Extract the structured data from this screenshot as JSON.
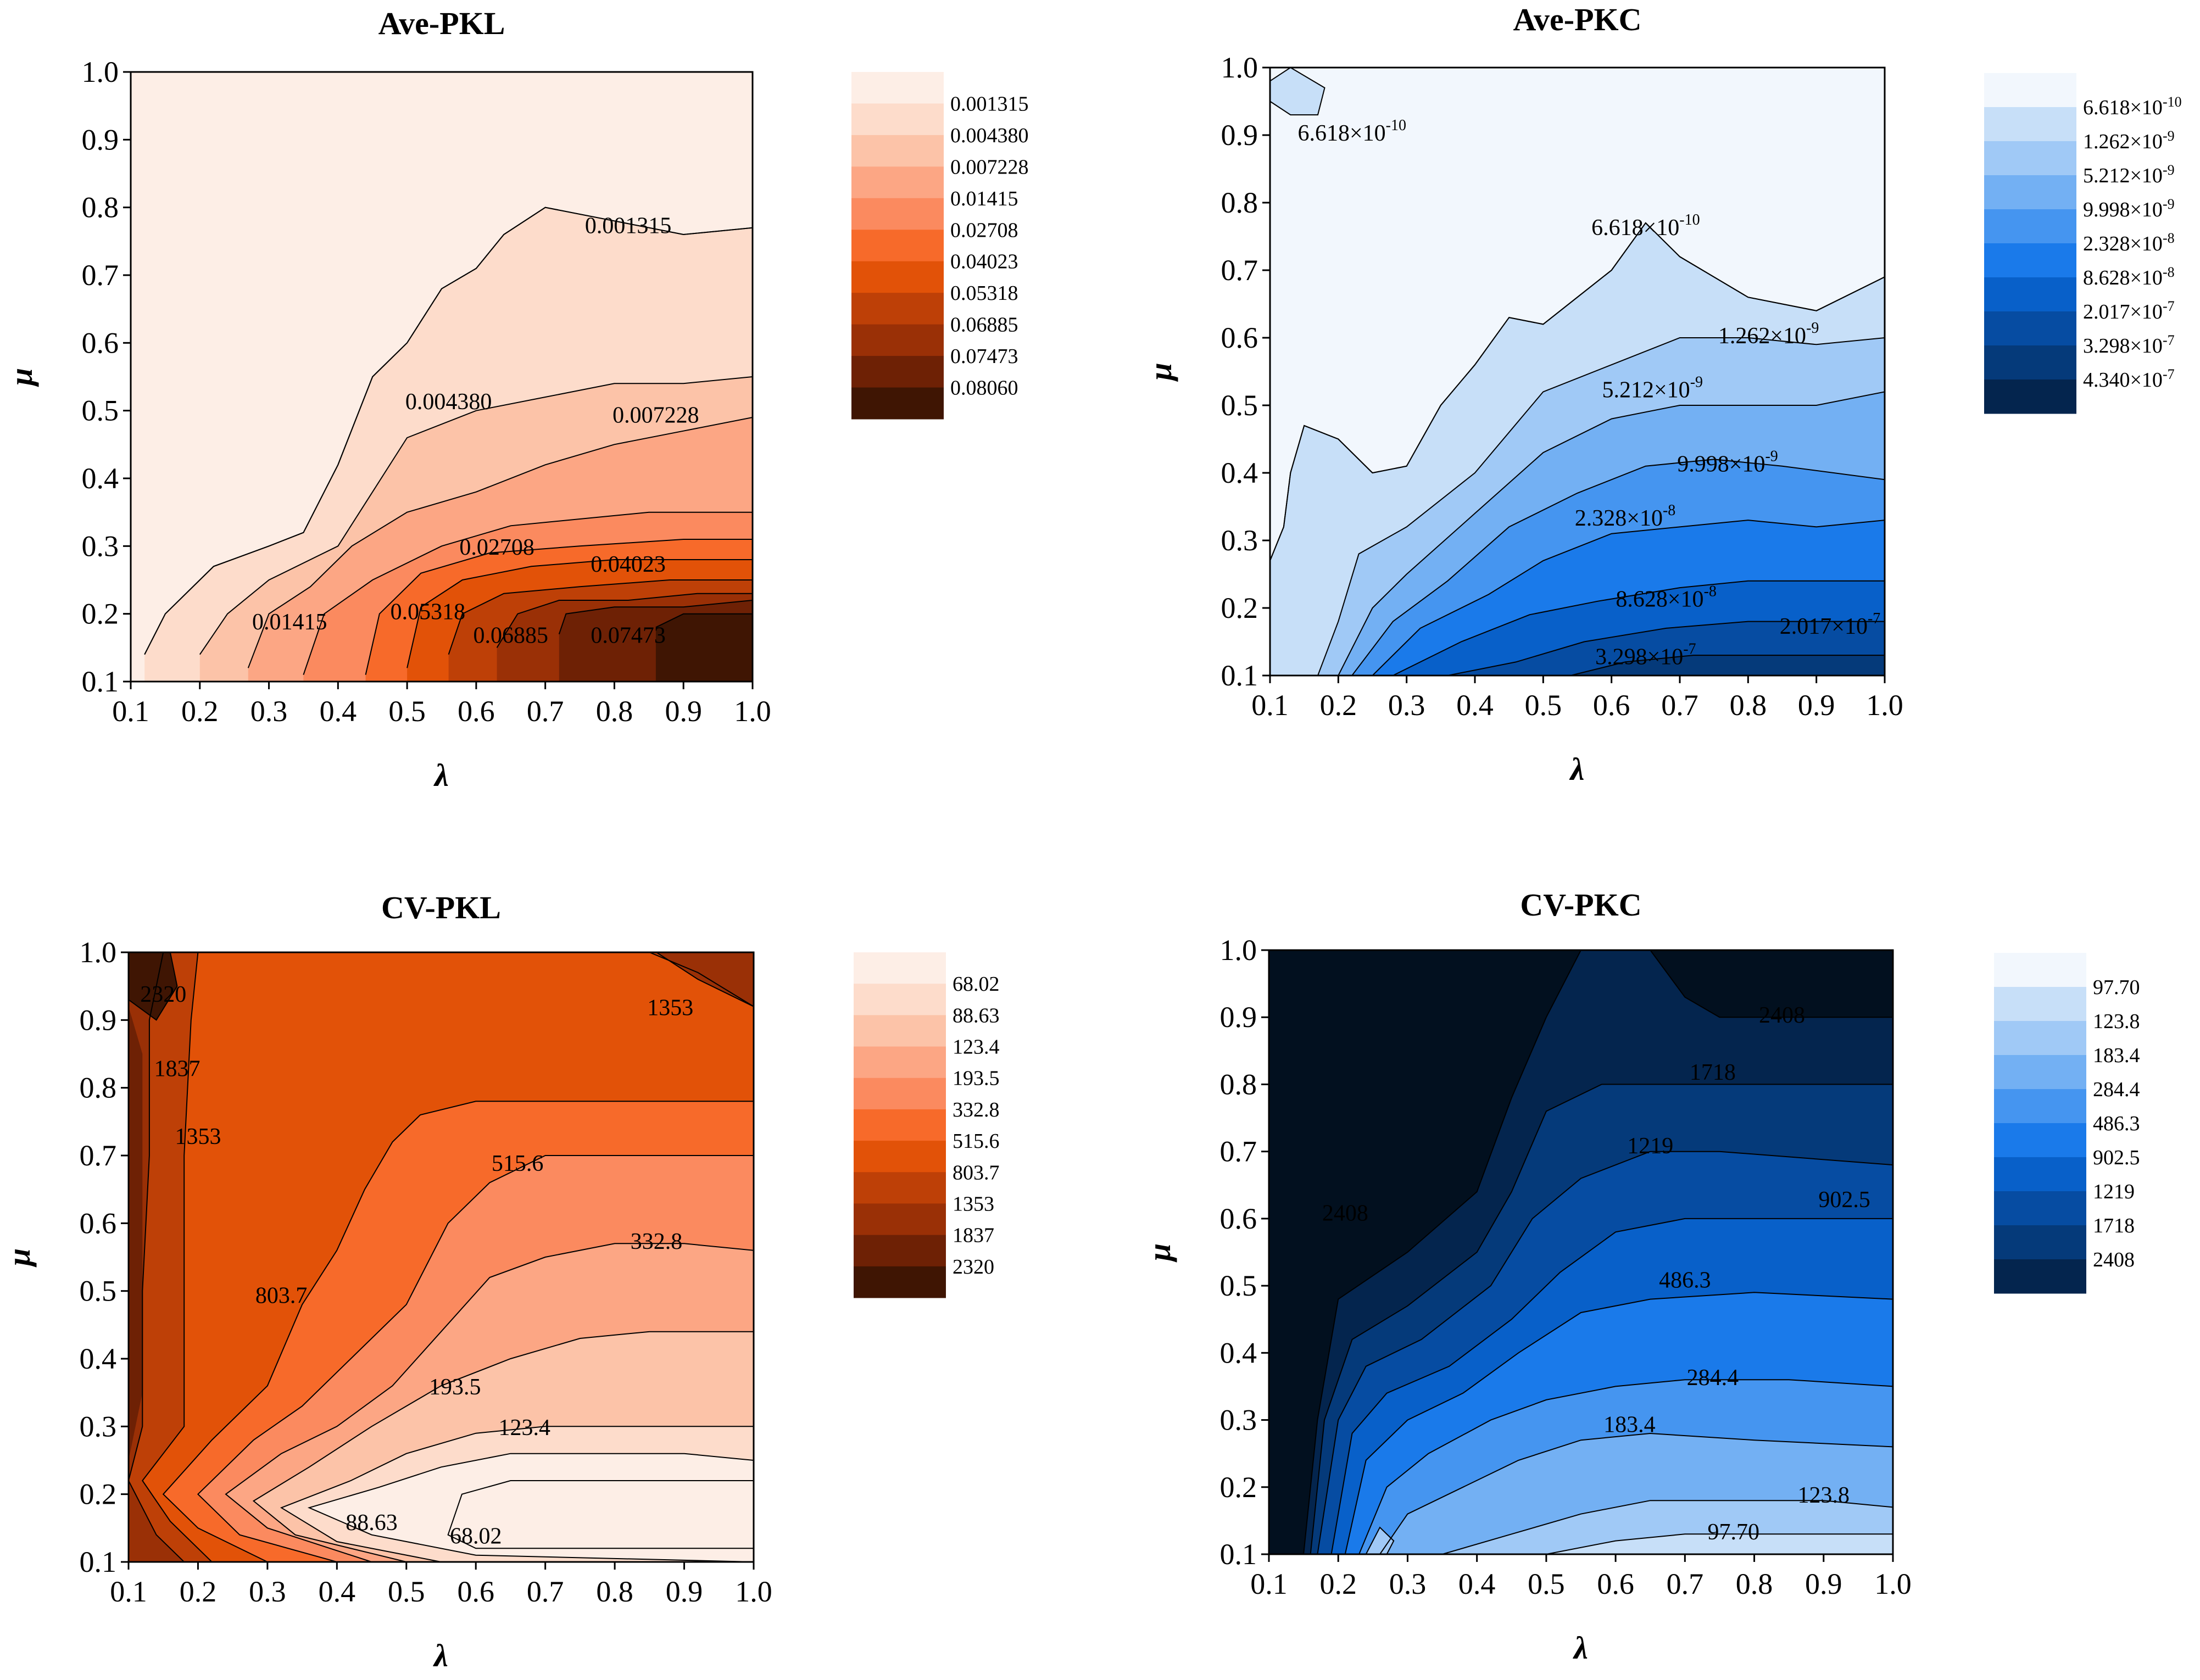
{
  "chart_data": [
    {
      "type": "contour",
      "title": "Ave-PKL",
      "xlabel": "λ",
      "ylabel": "μ",
      "xlim": [
        0.1,
        1.0
      ],
      "ylim": [
        0.1,
        1.0
      ],
      "x_ticks": [
        "0.1",
        "0.2",
        "0.3",
        "0.4",
        "0.5",
        "0.6",
        "0.7",
        "0.8",
        "0.9",
        "1.0"
      ],
      "y_ticks": [
        "0.1",
        "0.2",
        "0.3",
        "0.4",
        "0.5",
        "0.6",
        "0.7",
        "0.8",
        "0.9",
        "1.0"
      ],
      "color_scale": "oranges",
      "colors": [
        "#FDEEE6",
        "#FDDCCB",
        "#FCC3A8",
        "#FCA684",
        "#FB8A5F",
        "#F76A2A",
        "#E25208",
        "#BE4007",
        "#9A3006",
        "#6E2105",
        "#3F1503"
      ],
      "levels": [
        "0.001315",
        "0.004380",
        "0.007228",
        "0.01415",
        "0.02708",
        "0.04023",
        "0.05318",
        "0.06885",
        "0.07473",
        "0.08060"
      ],
      "contour_labels": [
        {
          "text": "0.001315",
          "x": 0.82,
          "y": 0.77
        },
        {
          "text": "0.004380",
          "x": 0.56,
          "y": 0.51
        },
        {
          "text": "0.007228",
          "x": 0.86,
          "y": 0.49
        },
        {
          "text": "0.02708",
          "x": 0.63,
          "y": 0.295
        },
        {
          "text": "0.04023",
          "x": 0.82,
          "y": 0.27
        },
        {
          "text": "0.01415",
          "x": 0.33,
          "y": 0.185
        },
        {
          "text": "0.05318",
          "x": 0.53,
          "y": 0.2
        },
        {
          "text": "0.06885",
          "x": 0.65,
          "y": 0.165
        },
        {
          "text": "0.07473",
          "x": 0.82,
          "y": 0.165
        }
      ]
    },
    {
      "type": "contour",
      "title": "Ave-PKC",
      "xlabel": "λ",
      "ylabel": "μ",
      "xlim": [
        0.1,
        1.0
      ],
      "ylim": [
        0.1,
        1.0
      ],
      "x_ticks": [
        "0.1",
        "0.2",
        "0.3",
        "0.4",
        "0.5",
        "0.6",
        "0.7",
        "0.8",
        "0.9",
        "1.0"
      ],
      "y_ticks": [
        "0.1",
        "0.2",
        "0.3",
        "0.4",
        "0.5",
        "0.6",
        "0.7",
        "0.8",
        "0.9",
        "1.0"
      ],
      "color_scale": "blues",
      "colors": [
        "#F2F7FD",
        "#C7DFF8",
        "#A0C9F6",
        "#73B0F3",
        "#4595F0",
        "#1A7AEA",
        "#0860C9",
        "#064CA2",
        "#053A7A",
        "#04254E",
        "#02101F"
      ],
      "levels": [
        {
          "mantissa": "6.618",
          "exp": "-10"
        },
        {
          "mantissa": "1.262",
          "exp": "-9"
        },
        {
          "mantissa": "5.212",
          "exp": "-9"
        },
        {
          "mantissa": "9.998",
          "exp": "-9"
        },
        {
          "mantissa": "2.328",
          "exp": "-8"
        },
        {
          "mantissa": "8.628",
          "exp": "-8"
        },
        {
          "mantissa": "2.017",
          "exp": "-7"
        },
        {
          "mantissa": "3.298",
          "exp": "-7"
        },
        {
          "mantissa": "4.340",
          "exp": "-7"
        }
      ],
      "contour_labels": [
        {
          "mantissa": "6.618",
          "exp": "-10",
          "x": 0.22,
          "y": 0.9
        },
        {
          "mantissa": "6.618",
          "exp": "-10",
          "x": 0.65,
          "y": 0.76
        },
        {
          "mantissa": "1.262",
          "exp": "-9",
          "x": 0.83,
          "y": 0.6
        },
        {
          "mantissa": "5.212",
          "exp": "-9",
          "x": 0.66,
          "y": 0.52
        },
        {
          "mantissa": "9.998",
          "exp": "-9",
          "x": 0.77,
          "y": 0.41
        },
        {
          "mantissa": "2.328",
          "exp": "-8",
          "x": 0.62,
          "y": 0.33
        },
        {
          "mantissa": "8.628",
          "exp": "-8",
          "x": 0.68,
          "y": 0.21
        },
        {
          "mantissa": "2.017",
          "exp": "-7",
          "x": 0.92,
          "y": 0.17
        },
        {
          "mantissa": "3.298",
          "exp": "-7",
          "x": 0.65,
          "y": 0.125
        }
      ]
    },
    {
      "type": "contour",
      "title": "CV-PKL",
      "xlabel": "λ",
      "ylabel": "μ",
      "xlim": [
        0.1,
        1.0
      ],
      "ylim": [
        0.1,
        1.0
      ],
      "x_ticks": [
        "0.1",
        "0.2",
        "0.3",
        "0.4",
        "0.5",
        "0.6",
        "0.7",
        "0.8",
        "0.9",
        "1.0"
      ],
      "y_ticks": [
        "0.1",
        "0.2",
        "0.3",
        "0.4",
        "0.5",
        "0.6",
        "0.7",
        "0.8",
        "0.9",
        "1.0"
      ],
      "color_scale": "oranges",
      "colors": [
        "#FDEEE6",
        "#FDDCCB",
        "#FCC3A8",
        "#FCA684",
        "#FB8A5F",
        "#F76A2A",
        "#E25208",
        "#BE4007",
        "#9A3006",
        "#6E2105",
        "#3F1503"
      ],
      "levels": [
        "68.02",
        "88.63",
        "123.4",
        "193.5",
        "332.8",
        "515.6",
        "803.7",
        "1353",
        "1837",
        "2320"
      ],
      "contour_labels": [
        {
          "text": "2320",
          "x": 0.15,
          "y": 0.935
        },
        {
          "text": "1353",
          "x": 0.88,
          "y": 0.915
        },
        {
          "text": "1837",
          "x": 0.17,
          "y": 0.825
        },
        {
          "text": "1353",
          "x": 0.2,
          "y": 0.725
        },
        {
          "text": "515.6",
          "x": 0.66,
          "y": 0.685
        },
        {
          "text": "332.8",
          "x": 0.86,
          "y": 0.57
        },
        {
          "text": "803.7",
          "x": 0.32,
          "y": 0.49
        },
        {
          "text": "193.5",
          "x": 0.57,
          "y": 0.355
        },
        {
          "text": "123.4",
          "x": 0.67,
          "y": 0.295
        },
        {
          "text": "88.63",
          "x": 0.45,
          "y": 0.155
        },
        {
          "text": "68.02",
          "x": 0.6,
          "y": 0.135
        }
      ]
    },
    {
      "type": "contour",
      "title": "CV-PKC",
      "xlabel": "λ",
      "ylabel": "μ",
      "xlim": [
        0.1,
        1.0
      ],
      "ylim": [
        0.1,
        1.0
      ],
      "x_ticks": [
        "0.1",
        "0.2",
        "0.3",
        "0.4",
        "0.5",
        "0.6",
        "0.7",
        "0.8",
        "0.9",
        "1.0"
      ],
      "y_ticks": [
        "0.1",
        "0.2",
        "0.3",
        "0.4",
        "0.5",
        "0.6",
        "0.7",
        "0.8",
        "0.9",
        "1.0"
      ],
      "color_scale": "blues",
      "colors": [
        "#F2F7FD",
        "#C7DFF8",
        "#A0C9F6",
        "#73B0F3",
        "#4595F0",
        "#1A7AEA",
        "#0860C9",
        "#064CA2",
        "#053A7A",
        "#04254E",
        "#02101F"
      ],
      "levels": [
        "97.70",
        "123.8",
        "183.4",
        "284.4",
        "486.3",
        "902.5",
        "1219",
        "1718",
        "2408"
      ],
      "contour_labels": [
        {
          "text": "2408",
          "x": 0.84,
          "y": 0.9
        },
        {
          "text": "1718",
          "x": 0.74,
          "y": 0.815
        },
        {
          "text": "1219",
          "x": 0.65,
          "y": 0.705
        },
        {
          "text": "902.5",
          "x": 0.93,
          "y": 0.625
        },
        {
          "text": "2408",
          "x": 0.21,
          "y": 0.605
        },
        {
          "text": "486.3",
          "x": 0.7,
          "y": 0.505
        },
        {
          "text": "284.4",
          "x": 0.74,
          "y": 0.36
        },
        {
          "text": "183.4",
          "x": 0.62,
          "y": 0.29
        },
        {
          "text": "123.8",
          "x": 0.9,
          "y": 0.185
        },
        {
          "text": "97.70",
          "x": 0.77,
          "y": 0.13
        }
      ]
    }
  ]
}
